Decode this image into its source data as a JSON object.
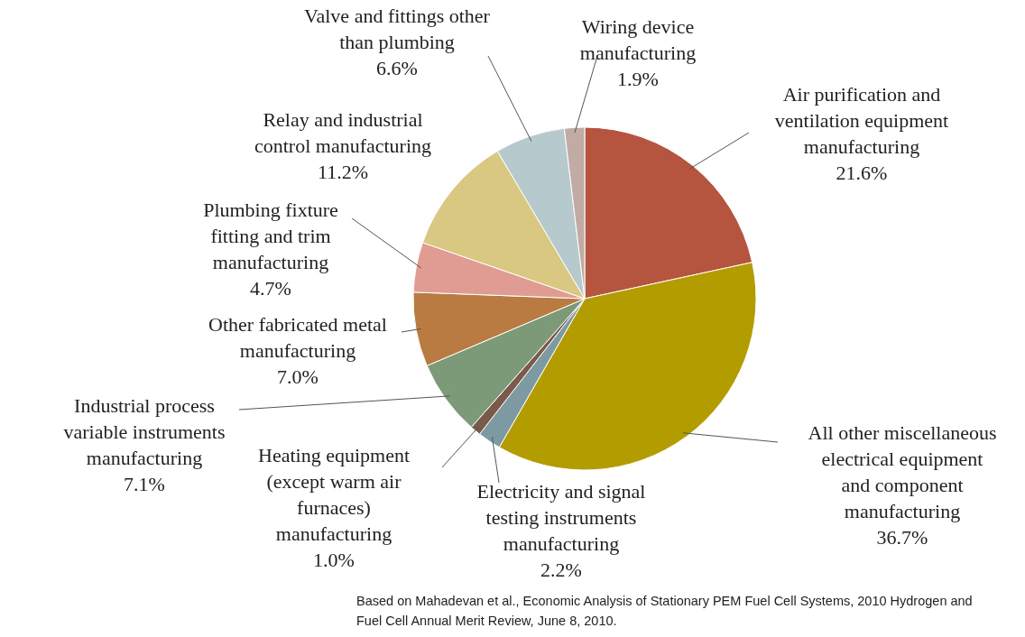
{
  "chart_data": {
    "type": "pie",
    "categories": [
      "Air purification and ventilation equipment manufacturing",
      "All other miscellaneous electrical equipment and component manufacturing",
      "Electricity and signal testing instruments manufacturing",
      "Heating equipment (except warm air furnaces) manufacturing",
      "Industrial process variable instruments manufacturing",
      "Other fabricated metal manufacturing",
      "Plumbing fixture fitting and trim manufacturing",
      "Relay and industrial control manufacturing",
      "Valve and fittings other than plumbing",
      "Wiring device manufacturing"
    ],
    "values": [
      21.6,
      36.7,
      2.2,
      1.0,
      7.1,
      7.0,
      4.7,
      11.2,
      6.6,
      1.9
    ],
    "value_labels": [
      "21.6%",
      "36.7%",
      "2.2%",
      "1.0%",
      "7.1%",
      "7.0%",
      "4.7%",
      "11.2%",
      "6.6%",
      "1.9%"
    ],
    "colors": [
      "#b5553f",
      "#b39c00",
      "#7d9aa3",
      "#7a5a4a",
      "#7d9a78",
      "#b97b42",
      "#e09c92",
      "#d8c882",
      "#b6cacd",
      "#c2aba5"
    ],
    "annotations": [
      "Based on Mahadevan et al., Economic Analysis of Stationary PEM Fuel Cell Systems, 2010 Hydrogen and Fuel Cell Annual Merit Review, June 8, 2010."
    ]
  }
}
